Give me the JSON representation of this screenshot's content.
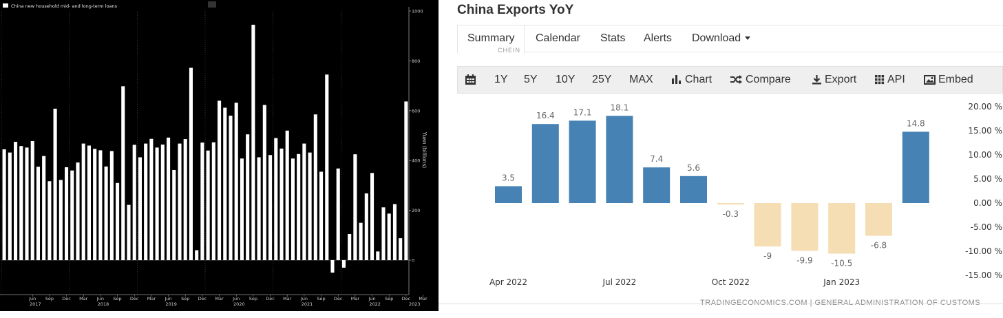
{
  "left_chart": {
    "legend": "China new household mid- and long-term loans",
    "ylabel": "Yuan (billions)",
    "y_ticks": [
      0,
      200,
      400,
      600,
      800,
      1000
    ],
    "month_labels": [
      "Jun",
      "Sep",
      "Dec",
      "Mar",
      "Jun",
      "Sep",
      "Dec",
      "Mar",
      "Jun",
      "Sep",
      "Dec",
      "Mar",
      "Jun",
      "Sep",
      "Dec",
      "Mar",
      "Jun",
      "Sep",
      "Dec",
      "Mar",
      "Jun",
      "Sep",
      "Dec",
      "Mar"
    ],
    "year_labels": [
      "2017",
      "2018",
      "2019",
      "2020",
      "2021",
      "2022",
      "2023"
    ],
    "colors": {
      "background": "#000000",
      "bar": "#ffffff",
      "axis": "#999999"
    }
  },
  "right_widget": {
    "title": "China Exports YoY",
    "tabs": [
      {
        "label": "Summary",
        "active": true
      },
      {
        "label": "Calendar"
      },
      {
        "label": "Stats"
      },
      {
        "label": "Alerts"
      },
      {
        "label": "Download"
      }
    ],
    "cut_text": "CHEIN",
    "toolbar": {
      "periods": [
        "1Y",
        "5Y",
        "10Y",
        "25Y",
        "MAX"
      ],
      "chart": "Chart",
      "compare": "Compare",
      "export": "Export",
      "api": "API",
      "embed": "Embed"
    },
    "source": "TRADINGECONOMICS.COM | GENERAL ADMINISTRATION OF CUSTOMS"
  },
  "chart_data": [
    {
      "type": "bar",
      "legend": [
        "China new household mid- and long-term loans"
      ],
      "ylabel": "Yuan (billions)",
      "ylim": [
        -120,
        1000
      ],
      "x_start": "2017-01",
      "x_end": "2023-03",
      "values": [
        445,
        432,
        475,
        458,
        452,
        478,
        375,
        418,
        317,
        608,
        322,
        373,
        360,
        392,
        468,
        460,
        447,
        441,
        376,
        438,
        310,
        698,
        222,
        463,
        413,
        468,
        487,
        452,
        464,
        492,
        362,
        468,
        486,
        772,
        40,
        472,
        440,
        473,
        640,
        612,
        580,
        632,
        408,
        505,
        945,
        413,
        623,
        422,
        490,
        448,
        520,
        408,
        426,
        468,
        432,
        585,
        355,
        745,
        -50,
        368,
        -30,
        105,
        425,
        150,
        268,
        350,
        35,
        212,
        187,
        225,
        88,
        637
      ],
      "colors": {
        "bar": "#ffffff"
      }
    },
    {
      "type": "bar",
      "title": "China Exports YoY",
      "categories": [
        "Apr 2022",
        "May 2022",
        "Jun 2022",
        "Jul 2022",
        "Aug 2022",
        "Sep 2022",
        "Oct 2022",
        "Nov 2022",
        "Dec 2022",
        "Jan 2023",
        "Feb 2023",
        "Mar 2023"
      ],
      "values": [
        3.5,
        16.4,
        17.1,
        18.1,
        7.4,
        5.6,
        -0.3,
        -9,
        -9.9,
        -10.5,
        -6.8,
        14.8
      ],
      "x_tick_labels": [
        "Apr 2022",
        "Jul 2022",
        "Oct 2022",
        "Jan 2023"
      ],
      "y_ticks": [
        20,
        15,
        10,
        5,
        0,
        -5,
        -10,
        -15
      ],
      "y_tick_labels": [
        "20.00 %",
        "15.00 %",
        "10.00 %",
        "5.00 %",
        "0.00 %",
        "-5.00 %",
        "-10.00 %",
        "-15.00 %"
      ],
      "ylim": [
        -15,
        20
      ],
      "colors": {
        "positive": "#4682b4",
        "negative": "#f5deb3"
      }
    }
  ]
}
